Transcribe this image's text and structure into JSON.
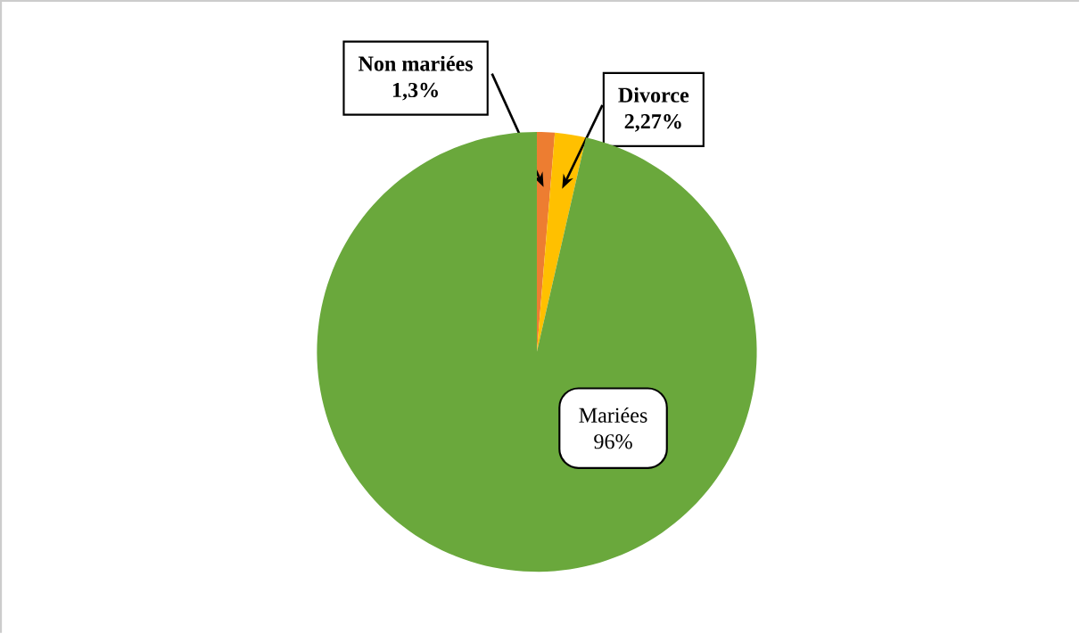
{
  "chart_data": {
    "type": "pie",
    "categories": [
      "Non mariées",
      "Divorce",
      "Mariées"
    ],
    "values": [
      1.3,
      2.27,
      96
    ],
    "colors": [
      "#ed7d31",
      "#ffc000",
      "#6aa83c"
    ],
    "value_labels": [
      "1,3%",
      "2,27%",
      "96%"
    ]
  }
}
